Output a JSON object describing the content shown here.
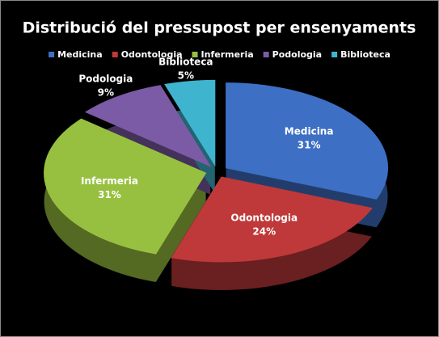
{
  "chart_data": {
    "type": "pie",
    "title": "Distribució del pressupost per ensenyaments",
    "categories": [
      "Medicina",
      "Odontologia",
      "Infermeria",
      "Podologia",
      "Biblioteca"
    ],
    "values": [
      31,
      24,
      31,
      9,
      5
    ],
    "value_labels": [
      "31%",
      "24%",
      "31%",
      "9%",
      "5%"
    ],
    "colors": [
      "#3d6fc4",
      "#c0393a",
      "#98c040",
      "#7b5ba6",
      "#3fb4cf"
    ],
    "legend": "top"
  }
}
